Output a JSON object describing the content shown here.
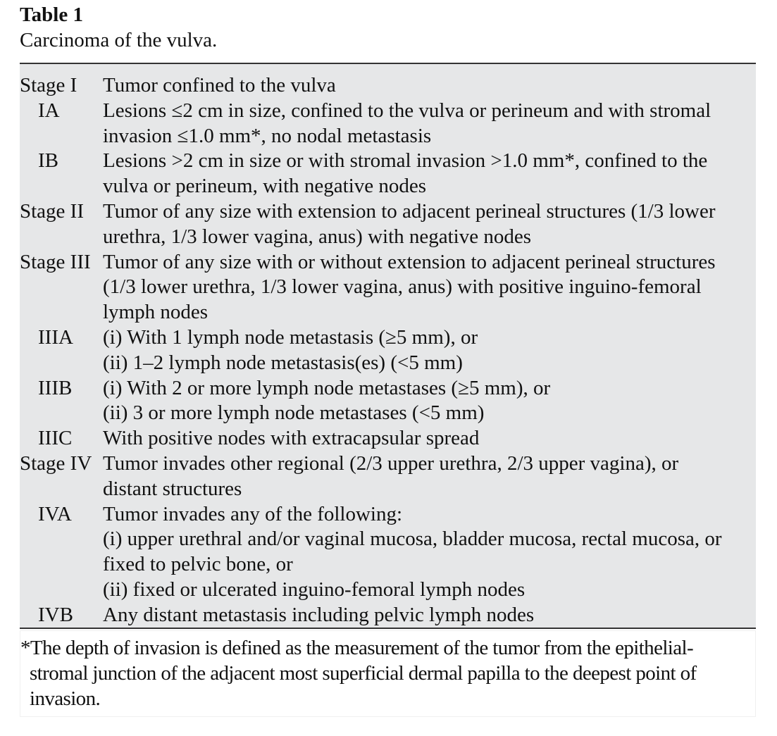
{
  "title": "Table 1",
  "caption": "Carcinoma of the vulva.",
  "rows": [
    {
      "stage": "Stage I",
      "sub": false,
      "lines": [
        "Tumor confined to the vulva"
      ]
    },
    {
      "stage": "IA",
      "sub": true,
      "lines": [
        "Lesions ≤2 cm in size, confined to the vulva or perineum and with stromal",
        "invasion ≤1.0 mm*, no nodal metastasis"
      ]
    },
    {
      "stage": "IB",
      "sub": true,
      "lines": [
        "Lesions >2 cm in size or with stromal invasion >1.0 mm*, confined to the",
        "vulva or perineum, with negative nodes"
      ]
    },
    {
      "stage": "Stage II",
      "sub": false,
      "lines": [
        "Tumor of any size with extension to adjacent perineal structures (1/3 lower",
        "urethra, 1/3 lower vagina, anus) with negative nodes"
      ]
    },
    {
      "stage": "Stage III",
      "sub": false,
      "lines": [
        "Tumor of any size with or without extension to adjacent perineal structures",
        "(1/3 lower urethra, 1/3 lower vagina, anus) with positive inguino-femoral",
        "lymph nodes"
      ]
    },
    {
      "stage": "IIIA",
      "sub": true,
      "lines": [
        "(i) With 1 lymph node metastasis (≥5 mm), or",
        "(ii) 1–2 lymph node metastasis(es) (<5 mm)"
      ]
    },
    {
      "stage": "IIIB",
      "sub": true,
      "lines": [
        "(i) With 2 or more lymph node metastases (≥5 mm), or",
        "(ii) 3 or more lymph node metastases (<5 mm)"
      ]
    },
    {
      "stage": "IIIC",
      "sub": true,
      "lines": [
        "With positive nodes with extracapsular spread"
      ]
    },
    {
      "stage": "Stage IV",
      "sub": false,
      "lines": [
        "Tumor invades other regional (2/3 upper urethra, 2/3 upper vagina), or",
        "distant structures"
      ]
    },
    {
      "stage": "IVA",
      "sub": true,
      "lines": [
        "Tumor invades any of the following:",
        "(i) upper urethral and/or vaginal mucosa, bladder mucosa, rectal mucosa, or",
        "fixed to pelvic bone, or",
        "(ii) fixed or ulcerated inguino-femoral lymph nodes"
      ]
    },
    {
      "stage": "IVB",
      "sub": true,
      "lines": [
        "Any distant metastasis including pelvic lymph nodes"
      ]
    }
  ],
  "footnote": {
    "lines": [
      "*The depth of invasion is defined as the measurement of the tumor from the epithelial-",
      "stromal junction of the adjacent most superficial dermal papilla to the deepest point of",
      "invasion."
    ]
  }
}
